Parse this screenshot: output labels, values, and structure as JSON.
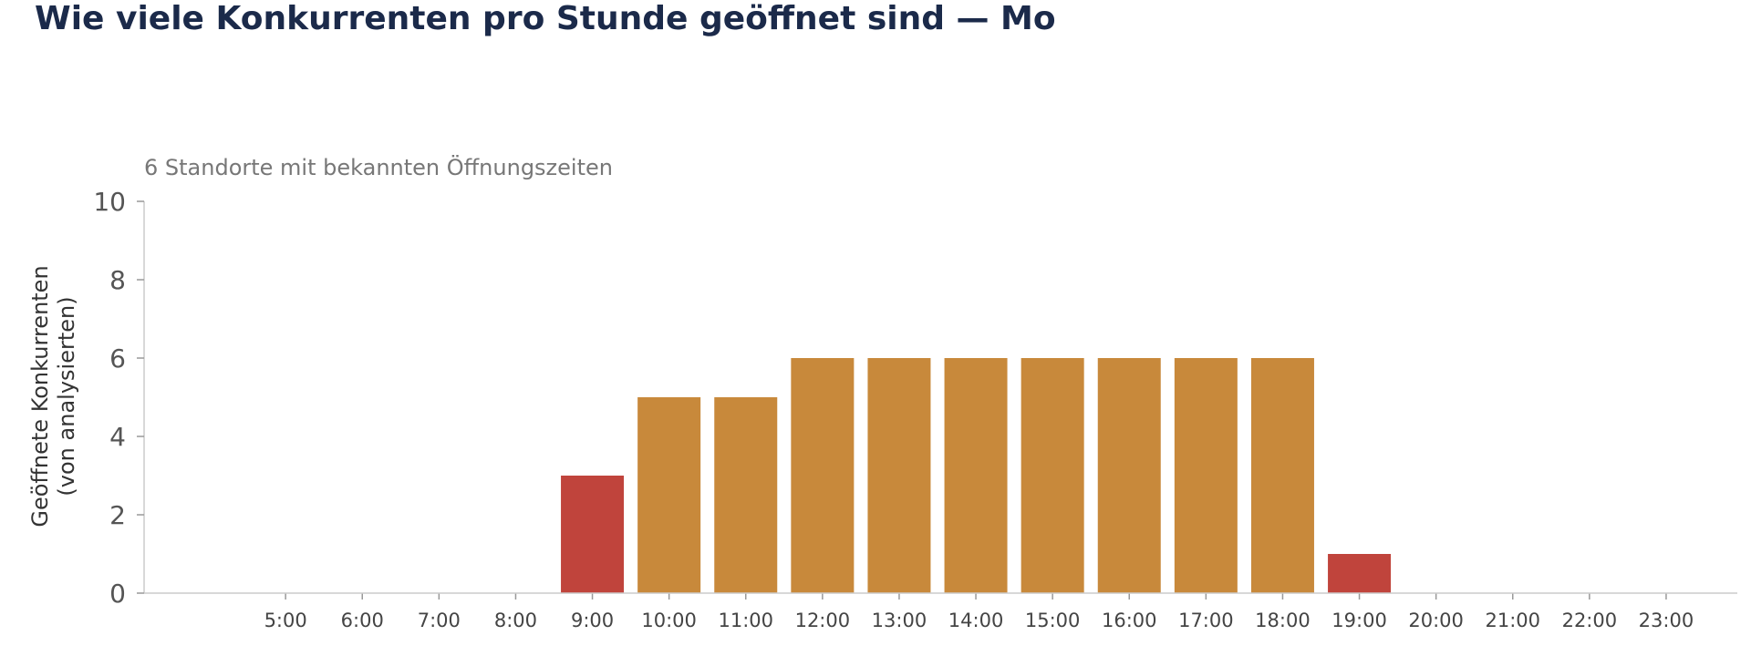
{
  "chart_data": {
    "type": "bar",
    "title": "Wie viele Konkurrenten pro Stunde geöffnet sind — Mo",
    "subtitle": "6 Standorte mit bekannten Öffnungszeiten",
    "xlabel": "",
    "ylabel_lines": [
      "Geöffnete Konkurrenten",
      "(von analysierten)"
    ],
    "ylim": [
      0,
      10
    ],
    "yticks": [
      0,
      2,
      4,
      6,
      8,
      10
    ],
    "grid": false,
    "categories": [
      "5:00",
      "6:00",
      "7:00",
      "8:00",
      "9:00",
      "10:00",
      "11:00",
      "12:00",
      "13:00",
      "14:00",
      "15:00",
      "16:00",
      "17:00",
      "18:00",
      "19:00",
      "20:00",
      "21:00",
      "22:00",
      "23:00"
    ],
    "values": [
      0,
      0,
      0,
      0,
      3,
      5,
      5,
      6,
      6,
      6,
      6,
      6,
      6,
      6,
      1,
      0,
      0,
      0,
      0
    ],
    "bar_colors": [
      "#c8893b",
      "#c8893b",
      "#c8893b",
      "#c8893b",
      "#c0443c",
      "#c8893b",
      "#c8893b",
      "#c8893b",
      "#c8893b",
      "#c8893b",
      "#c8893b",
      "#c8893b",
      "#c8893b",
      "#c8893b",
      "#c0443c",
      "#c8893b",
      "#c8893b",
      "#c8893b",
      "#c8893b"
    ]
  },
  "colors": {
    "title": "#1b2a4a",
    "bar_primary": "#c8893b",
    "bar_highlight": "#c0443c",
    "axis": "#cccccc"
  }
}
